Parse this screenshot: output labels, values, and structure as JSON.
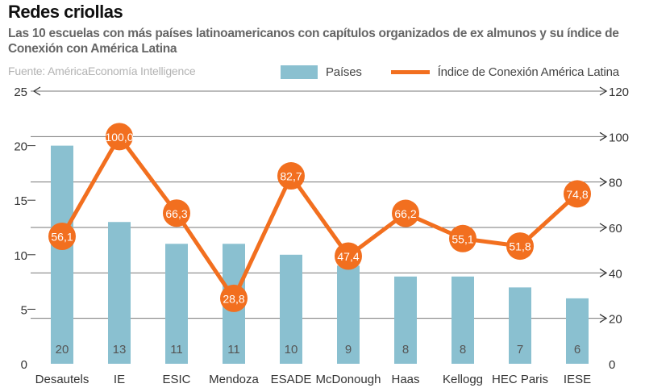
{
  "header": {
    "title": "Redes criollas",
    "subtitle": "Las 10 escuelas con más países latinoamericanos con capítulos organizados de ex almunos y su índice de Conexión con América Latina",
    "source": "Fuente: AméricaEconomía Intelligence"
  },
  "colors": {
    "bar": "#8ac0d0",
    "line": "#f26f1f",
    "grid": "#777777",
    "bar_label": "#555555",
    "point_label": "#ffffff"
  },
  "chart_data": {
    "type": "bar",
    "categories": [
      "Desautels",
      "IE",
      "ESIC",
      "Mendoza",
      "ESADE",
      "McDonough",
      "Haas",
      "Kellogg",
      "HEC Paris",
      "IESE"
    ],
    "series": [
      {
        "name": "Países",
        "type": "bar",
        "axis": "left",
        "values": [
          20,
          13,
          11,
          11,
          10,
          9,
          8,
          8,
          7,
          6
        ]
      },
      {
        "name": "Índice de Conexión América Latina",
        "type": "line",
        "axis": "right",
        "values": [
          56.1,
          100.0,
          66.3,
          28.8,
          82.7,
          47.4,
          66.2,
          55.1,
          51.8,
          74.8
        ]
      }
    ],
    "bar_labels": [
      "20",
      "13",
      "11",
      "11",
      "10",
      "9",
      "8",
      "8",
      "7",
      "6"
    ],
    "line_labels": [
      "56,1",
      "100,0",
      "66,3",
      "28,8",
      "82,7",
      "47,4",
      "66,2",
      "55,1",
      "51,8",
      "74,8"
    ],
    "y_left": {
      "range": [
        0,
        25
      ],
      "ticks": [
        0,
        5,
        10,
        15,
        20,
        25
      ],
      "tick_labels": [
        "0",
        "5",
        "10",
        "15",
        "20",
        "25"
      ]
    },
    "y_right": {
      "range": [
        0,
        120
      ],
      "ticks": [
        0,
        20,
        40,
        60,
        80,
        100,
        120
      ],
      "tick_labels": [
        "0",
        "20",
        "40",
        "60",
        "80",
        "100",
        "120"
      ]
    },
    "grid": true,
    "legend_position": "top-right"
  }
}
